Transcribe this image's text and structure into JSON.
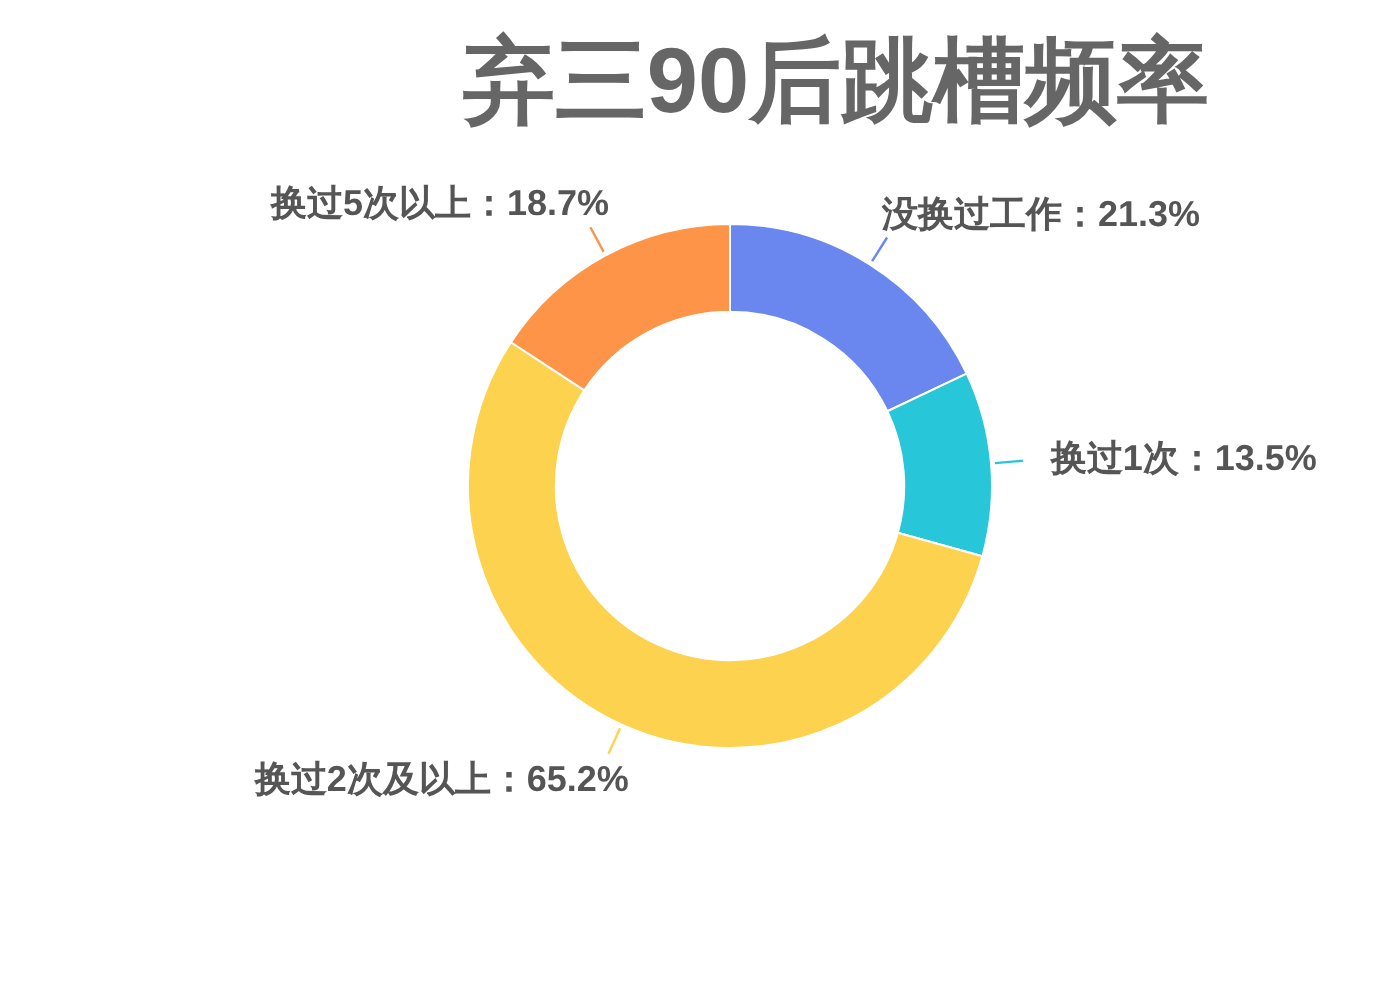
{
  "chart_data": {
    "type": "donut",
    "title": "弃三90后跳槽频率",
    "categories": [
      "没换过工作",
      "换过1次",
      "换过2次及以上",
      "换过5次以上"
    ],
    "values": [
      21.3,
      13.5,
      65.2,
      18.7
    ],
    "value_labels": [
      "21.3%",
      "13.5%",
      "65.2%",
      "18.7%"
    ],
    "colors": [
      "#6a86ef",
      "#27c6d8",
      "#fdd24f",
      "#fd9448"
    ],
    "legend": false
  }
}
